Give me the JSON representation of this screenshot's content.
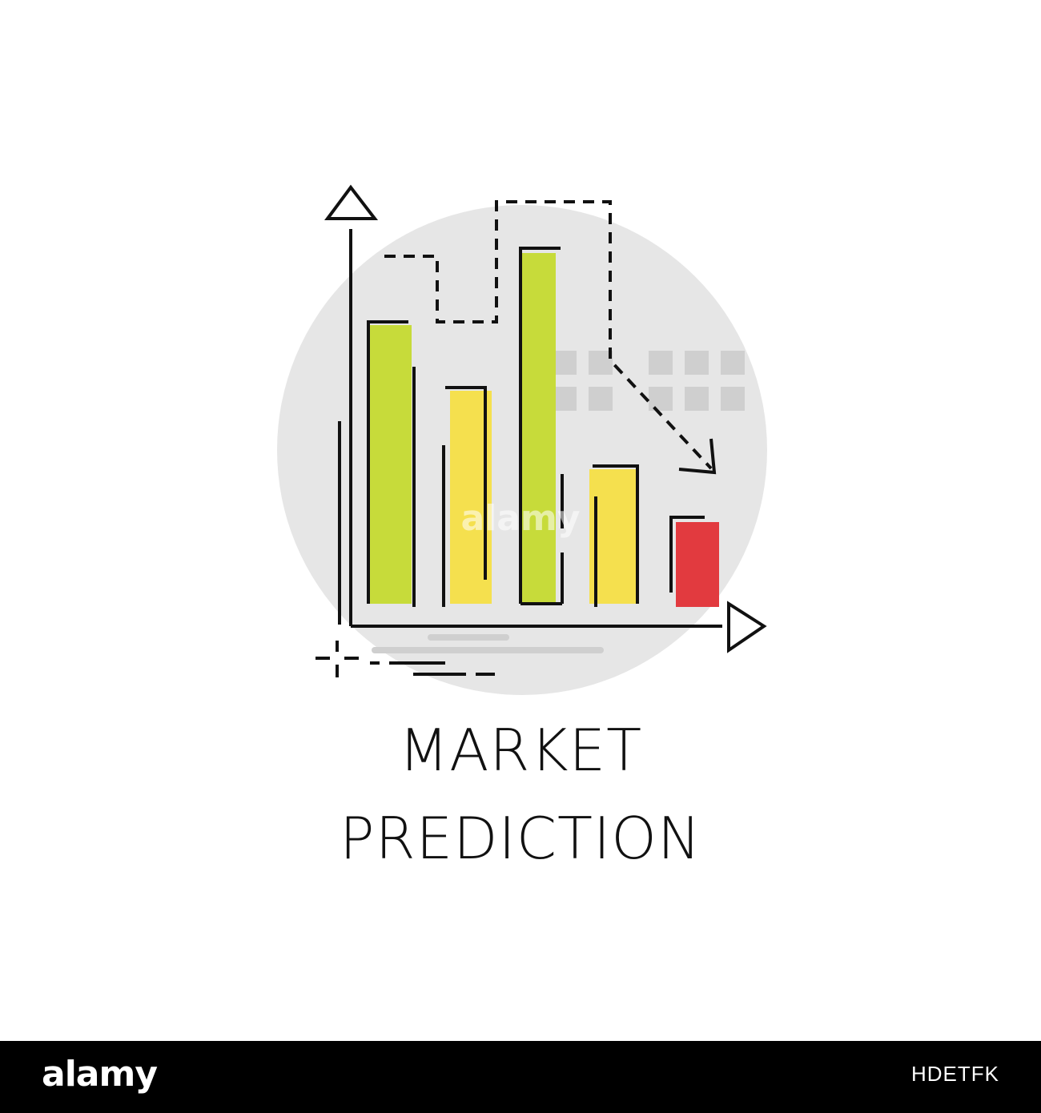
{
  "caption": {
    "line1": "MARKET",
    "line2": "PREDICTION"
  },
  "watermark": {
    "text": "alamy"
  },
  "footer": {
    "logo": "alamy",
    "image_id": "HDETFK"
  },
  "colors": {
    "background_circle": "#e6e6e6",
    "grid_squares": "#cfcfcf",
    "bar_green": "#c7db3a",
    "bar_yellow": "#f5e04e",
    "bar_red": "#e23a3f",
    "stroke": "#111111",
    "footer_bg": "#000000"
  },
  "icons": [
    "up-arrow-icon",
    "right-arrow-icon",
    "crosshair-icon",
    "trend-down-arrow-icon"
  ]
}
